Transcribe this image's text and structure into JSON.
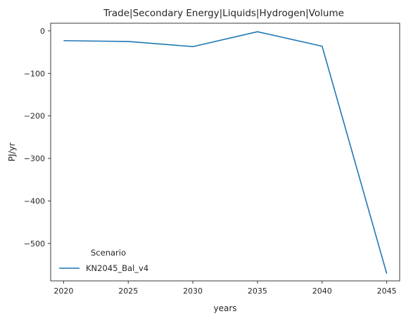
{
  "chart_data": {
    "type": "line",
    "title": "Trade|Secondary Energy|Liquids|Hydrogen|Volume",
    "xlabel": "years",
    "ylabel": "PJ/yr",
    "x": [
      2020,
      2025,
      2030,
      2035,
      2040,
      2045
    ],
    "xticks": [
      "2020",
      "2025",
      "2030",
      "2035",
      "2040",
      "2045"
    ],
    "yticks": [
      0,
      -100,
      -200,
      -300,
      -400,
      -500
    ],
    "ytick_labels": [
      "0",
      "−100",
      "−200",
      "−300",
      "−400",
      "−500"
    ],
    "xlim": [
      2019,
      2046
    ],
    "ylim": [
      -588,
      18
    ],
    "grid": false,
    "legend": {
      "title": "Scenario",
      "placement": "lower-left"
    },
    "series": [
      {
        "name": "KN2045_Bal_v4",
        "color": "#1f77b4",
        "values": [
          -23,
          -25,
          -37,
          -2,
          -36,
          -571
        ]
      }
    ]
  }
}
